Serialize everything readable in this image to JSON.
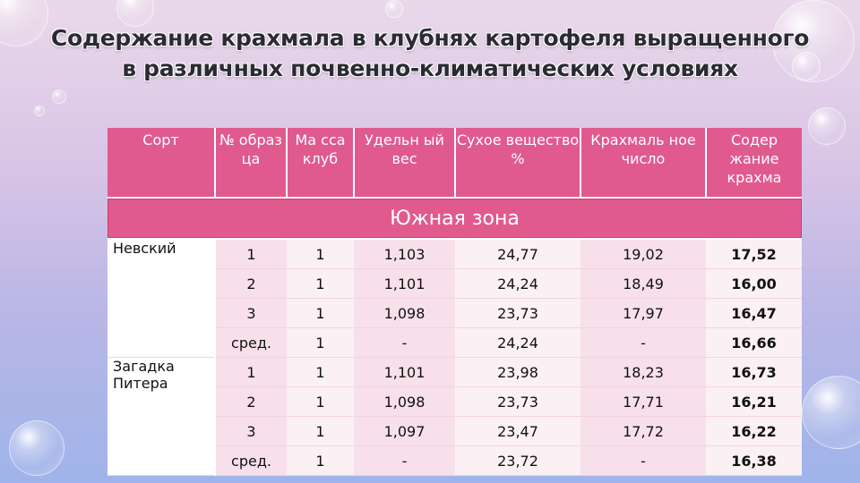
{
  "title": {
    "line1": "Содержание  крахмала в клубнях картофеля выращенного",
    "line2": "в  различных почвенно-климатических условиях"
  },
  "table": {
    "headers": [
      "Сорт",
      "№ образ ца",
      "Ма сса клуб",
      "Удельн ый вес",
      "Сухое вещество %",
      "Крахмаль ное число",
      "Содер жание крахма"
    ],
    "zone": "Южная зона",
    "groups": [
      {
        "sort": "Невский",
        "rows": [
          [
            "1",
            "1",
            "1,103",
            "24,77",
            "19,02",
            "17,52"
          ],
          [
            "2",
            "1",
            "1,101",
            "24,24",
            "18,49",
            "16,00"
          ],
          [
            "3",
            "1",
            "1,098",
            "23,73",
            "17,97",
            "16,47"
          ],
          [
            "сред.",
            "1",
            "-",
            "24,24",
            "-",
            "16,66"
          ]
        ]
      },
      {
        "sort": "Загадка Питера",
        "rows": [
          [
            "1",
            "1",
            "1,101",
            "23,98",
            "18,23",
            "16,73"
          ],
          [
            "2",
            "1",
            "1,098",
            "23,73",
            "17,71",
            "16,21"
          ],
          [
            "3",
            "1",
            "1,097",
            "23,47",
            "17,72",
            "16,22"
          ],
          [
            "сред.",
            "1",
            "-",
            "23,72",
            "-",
            "16,38"
          ]
        ]
      }
    ]
  }
}
